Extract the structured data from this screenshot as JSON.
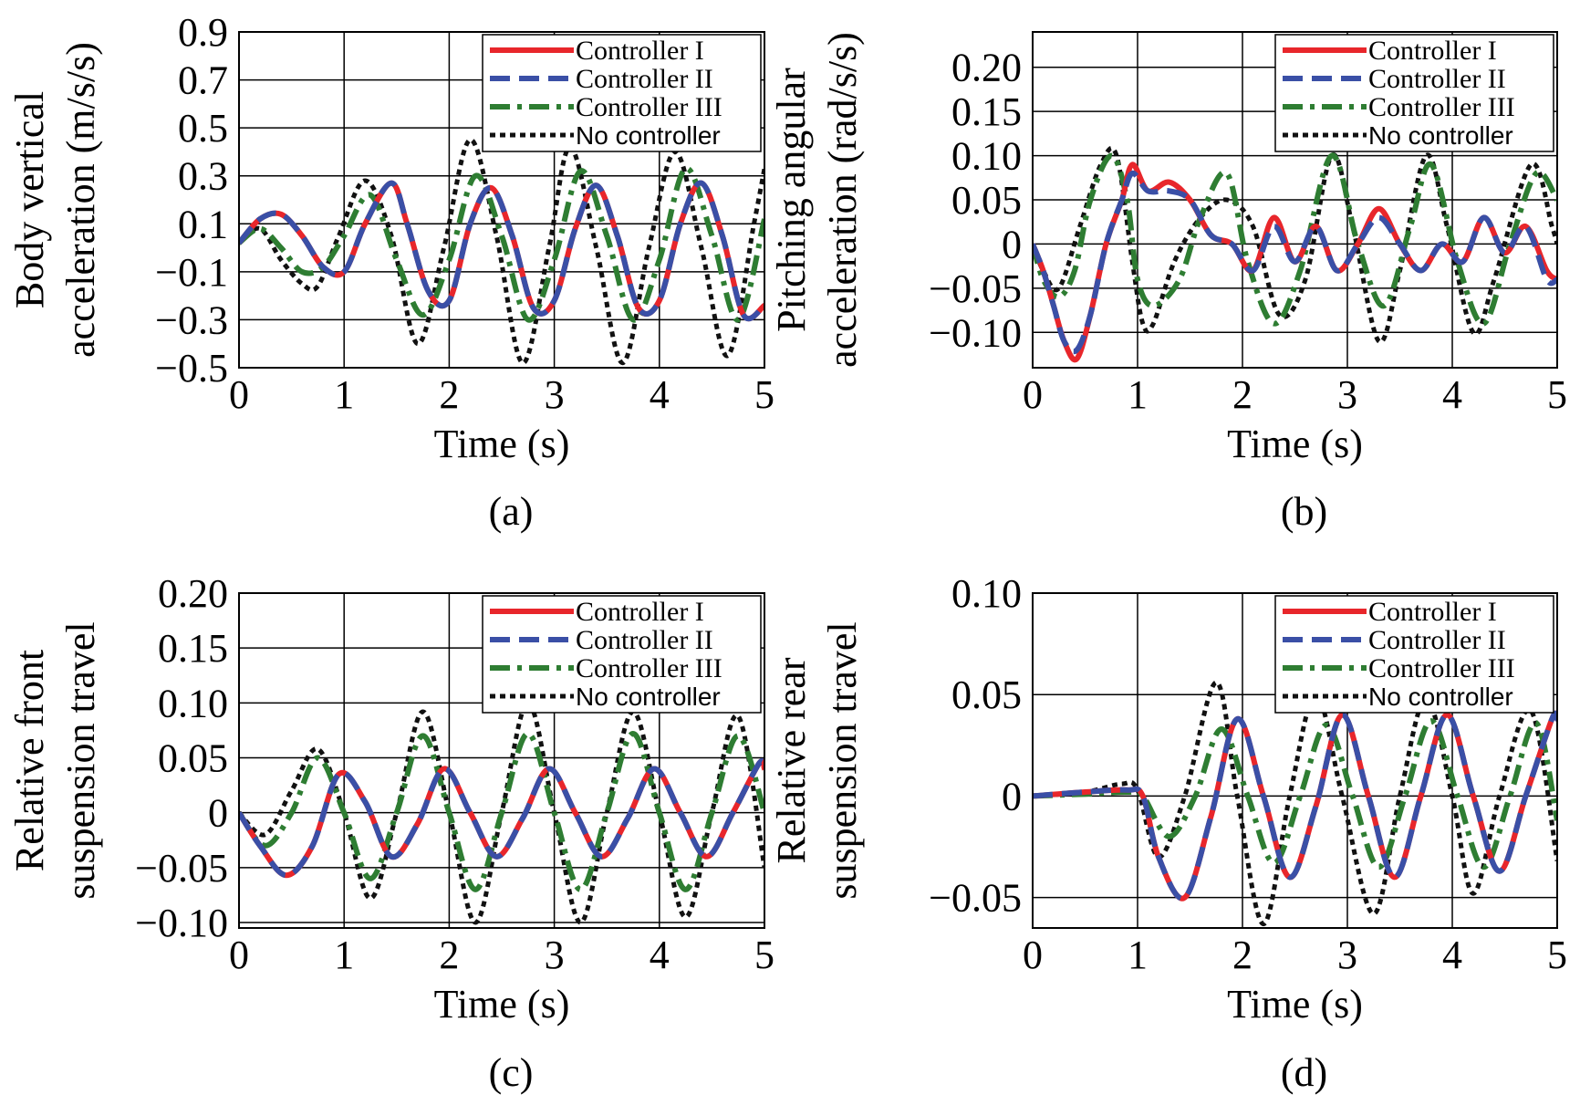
{
  "legend": [
    "Controller I",
    "Controller II",
    "Controller III",
    "No controller"
  ],
  "styles": {
    "Controller I": {
      "color": "#e8262b",
      "dash": "",
      "width": 6
    },
    "Controller II": {
      "color": "#3a4fa6",
      "dash": "22,10",
      "width": 6
    },
    "Controller III": {
      "color": "#2e7d32",
      "dash": "22,8,5,8",
      "width": 6
    },
    "No controller": {
      "color": "#111111",
      "dash": "6,5",
      "width": 5
    }
  },
  "chart_data": [
    {
      "type": "line",
      "caption": "(a)",
      "xlabel": "Time (s)",
      "ylabel": [
        "Body vertical",
        "acceleration (m/s/s)"
      ],
      "xlim": [
        0,
        5
      ],
      "ylim": [
        -0.5,
        0.9
      ],
      "xticks": [
        0,
        1,
        2,
        3,
        4,
        5
      ],
      "xtick_labels": [
        "0",
        "1",
        "2",
        "3",
        "4",
        "5"
      ],
      "yticks": [
        -0.5,
        -0.3,
        -0.1,
        0.1,
        0.3,
        0.5,
        0.7,
        0.9
      ],
      "ytick_labels": [
        "−0.5",
        "−0.3",
        "−0.1",
        "0.1",
        "0.3",
        "0.5",
        "0.7",
        "0.9"
      ],
      "grid": true,
      "legend_position": "top-right",
      "series": [
        {
          "name": "Controller I",
          "x": [
            0,
            0.2,
            0.4,
            0.6,
            0.8,
            1.0,
            1.2,
            1.45,
            1.6,
            1.8,
            2.0,
            2.2,
            2.4,
            2.6,
            2.8,
            3.0,
            3.2,
            3.4,
            3.6,
            3.8,
            4.0,
            4.2,
            4.4,
            4.6,
            4.8,
            5.0
          ],
          "y": [
            0.02,
            0.12,
            0.14,
            0.05,
            -0.08,
            -0.1,
            0.1,
            0.27,
            0.1,
            -0.18,
            -0.22,
            0.1,
            0.25,
            0.05,
            -0.25,
            -0.22,
            0.08,
            0.26,
            0.05,
            -0.25,
            -0.22,
            0.1,
            0.27,
            0.05,
            -0.28,
            -0.24
          ]
        },
        {
          "name": "Controller II",
          "x": [
            0,
            0.2,
            0.4,
            0.6,
            0.8,
            1.0,
            1.2,
            1.45,
            1.6,
            1.8,
            2.0,
            2.2,
            2.4,
            2.6,
            2.8,
            3.0,
            3.2,
            3.4,
            3.6,
            3.8,
            4.0,
            4.2,
            4.4,
            4.6,
            4.8,
            5.0
          ],
          "y": [
            0.02,
            0.12,
            0.14,
            0.05,
            -0.08,
            -0.1,
            0.1,
            0.27,
            0.1,
            -0.18,
            -0.22,
            0.1,
            0.25,
            0.05,
            -0.25,
            -0.22,
            0.08,
            0.26,
            0.05,
            -0.25,
            -0.22,
            0.1,
            0.27,
            0.05,
            -0.28,
            -0.24
          ]
        },
        {
          "name": "Controller III",
          "x": [
            0,
            0.2,
            0.4,
            0.6,
            0.8,
            1.0,
            1.25,
            1.5,
            1.75,
            2.0,
            2.25,
            2.5,
            2.75,
            3.0,
            3.25,
            3.5,
            3.75,
            4.0,
            4.25,
            4.5,
            4.75,
            5.0
          ],
          "y": [
            0.02,
            0.08,
            0.0,
            -0.1,
            -0.08,
            0.05,
            0.22,
            -0.05,
            -0.28,
            -0.05,
            0.3,
            0.05,
            -0.3,
            -0.05,
            0.32,
            0.05,
            -0.3,
            -0.05,
            0.33,
            0.05,
            -0.3,
            0.12
          ]
        },
        {
          "name": "No controller",
          "x": [
            0,
            0.2,
            0.4,
            0.6,
            0.75,
            0.95,
            1.2,
            1.45,
            1.7,
            1.95,
            2.2,
            2.45,
            2.7,
            2.95,
            3.15,
            3.4,
            3.65,
            3.9,
            4.15,
            4.4,
            4.65,
            4.9,
            5.0
          ],
          "y": [
            0.02,
            0.08,
            -0.05,
            -0.15,
            -0.16,
            0.05,
            0.28,
            0.05,
            -0.4,
            0.0,
            0.45,
            0.05,
            -0.48,
            0.0,
            0.42,
            0.0,
            -0.48,
            0.0,
            0.4,
            0.0,
            -0.45,
            0.1,
            0.33
          ]
        }
      ]
    },
    {
      "type": "line",
      "caption": "(b)",
      "xlabel": "Time (s)",
      "ylabel": [
        "Pitching angular",
        "acceleration (rad/s/s)"
      ],
      "xlim": [
        0,
        5
      ],
      "ylim": [
        -0.14,
        0.24
      ],
      "xticks": [
        0,
        1,
        2,
        3,
        4,
        5
      ],
      "xtick_labels": [
        "0",
        "1",
        "2",
        "3",
        "4",
        "5"
      ],
      "yticks": [
        -0.1,
        -0.05,
        0,
        0.05,
        0.1,
        0.15,
        0.2
      ],
      "ytick_labels": [
        "−0.10",
        "−0.05",
        "0",
        "0.05",
        "0.10",
        "0.15",
        "0.20"
      ],
      "grid": true,
      "legend_position": "top-right",
      "series": [
        {
          "name": "Controller I",
          "x": [
            0,
            0.1,
            0.2,
            0.3,
            0.42,
            0.55,
            0.7,
            0.85,
            0.95,
            1.1,
            1.3,
            1.5,
            1.7,
            1.9,
            2.1,
            2.3,
            2.5,
            2.7,
            2.9,
            3.1,
            3.3,
            3.5,
            3.7,
            3.9,
            4.1,
            4.3,
            4.5,
            4.7,
            4.9,
            5.0
          ],
          "y": [
            0,
            -0.03,
            -0.07,
            -0.11,
            -0.13,
            -0.08,
            0.0,
            0.05,
            0.09,
            0.06,
            0.07,
            0.05,
            0.01,
            0.0,
            -0.03,
            0.03,
            -0.02,
            0.02,
            -0.03,
            0.0,
            0.04,
            0.0,
            -0.03,
            0.0,
            -0.02,
            0.03,
            -0.01,
            0.02,
            -0.03,
            -0.04
          ]
        },
        {
          "name": "Controller II",
          "x": [
            0,
            0.1,
            0.2,
            0.3,
            0.42,
            0.55,
            0.7,
            0.85,
            0.95,
            1.1,
            1.3,
            1.5,
            1.7,
            1.9,
            2.1,
            2.3,
            2.5,
            2.7,
            2.9,
            3.1,
            3.3,
            3.5,
            3.7,
            3.9,
            4.1,
            4.3,
            4.5,
            4.7,
            4.9,
            5.0
          ],
          "y": [
            0,
            -0.03,
            -0.07,
            -0.11,
            -0.12,
            -0.08,
            0.0,
            0.05,
            0.08,
            0.06,
            0.06,
            0.05,
            0.01,
            0.0,
            -0.03,
            0.02,
            -0.02,
            0.02,
            -0.03,
            0.0,
            0.03,
            0.0,
            -0.03,
            0.0,
            -0.02,
            0.03,
            -0.01,
            0.02,
            -0.04,
            -0.04
          ]
        },
        {
          "name": "Controller III",
          "x": [
            0,
            0.1,
            0.25,
            0.4,
            0.55,
            0.75,
            0.9,
            1.0,
            1.15,
            1.4,
            1.6,
            1.85,
            2.05,
            2.3,
            2.55,
            2.85,
            3.1,
            3.35,
            3.6,
            3.8,
            4.05,
            4.3,
            4.55,
            4.8,
            5.0
          ],
          "y": [
            0,
            -0.04,
            -0.06,
            -0.03,
            0.05,
            0.1,
            0.05,
            -0.04,
            -0.07,
            -0.04,
            0.03,
            0.08,
            -0.02,
            -0.09,
            -0.03,
            0.1,
            0.0,
            -0.07,
            0.02,
            0.09,
            -0.02,
            -0.09,
            0.0,
            0.08,
            0.05
          ]
        },
        {
          "name": "No controller",
          "x": [
            0,
            0.1,
            0.25,
            0.45,
            0.65,
            0.8,
            0.95,
            1.05,
            1.15,
            1.35,
            1.6,
            1.85,
            2.1,
            2.35,
            2.6,
            2.85,
            3.05,
            3.3,
            3.5,
            3.75,
            3.95,
            4.2,
            4.4,
            4.75,
            4.95,
            5.0
          ],
          "y": [
            0,
            -0.03,
            -0.05,
            0.02,
            0.09,
            0.1,
            -0.02,
            -0.09,
            -0.09,
            -0.02,
            0.03,
            0.05,
            0.02,
            -0.08,
            -0.04,
            0.1,
            0.02,
            -0.11,
            -0.03,
            0.1,
            0.02,
            -0.1,
            -0.04,
            0.09,
            0.02,
            0.0
          ]
        }
      ]
    },
    {
      "type": "line",
      "caption": "(c)",
      "xlabel": "Time (s)",
      "ylabel": [
        "Relative front",
        "suspension travel"
      ],
      "xlim": [
        0,
        5
      ],
      "ylim": [
        -0.105,
        0.2
      ],
      "xticks": [
        0,
        1,
        2,
        3,
        4,
        5
      ],
      "xtick_labels": [
        "0",
        "1",
        "2",
        "3",
        "4",
        "5"
      ],
      "yticks": [
        -0.1,
        -0.05,
        0,
        0.05,
        0.1,
        0.15,
        0.2
      ],
      "ytick_labels": [
        "−0.10",
        "−0.05",
        "0",
        "0.05",
        "0.10",
        "0.15",
        "0.20"
      ],
      "grid": true,
      "legend_position": "top-right",
      "series": [
        {
          "name": "Controller I",
          "x": [
            0,
            0.2,
            0.45,
            0.7,
            0.95,
            1.2,
            1.45,
            1.7,
            1.95,
            2.2,
            2.45,
            2.7,
            2.95,
            3.2,
            3.45,
            3.7,
            3.95,
            4.2,
            4.45,
            4.7,
            4.95,
            5.0
          ],
          "y": [
            0,
            -0.03,
            -0.057,
            -0.03,
            0.035,
            0.01,
            -0.04,
            -0.01,
            0.04,
            0.0,
            -0.04,
            -0.005,
            0.04,
            0.0,
            -0.04,
            -0.005,
            0.04,
            0.0,
            -0.04,
            0.0,
            0.045,
            0.04
          ]
        },
        {
          "name": "Controller II",
          "x": [
            0,
            0.2,
            0.45,
            0.7,
            0.95,
            1.2,
            1.45,
            1.7,
            1.95,
            2.2,
            2.45,
            2.7,
            2.95,
            3.2,
            3.45,
            3.7,
            3.95,
            4.2,
            4.45,
            4.7,
            4.95,
            5.0
          ],
          "y": [
            0,
            -0.03,
            -0.057,
            -0.03,
            0.035,
            0.01,
            -0.04,
            -0.01,
            0.04,
            0.0,
            -0.04,
            -0.005,
            0.04,
            0.0,
            -0.04,
            -0.005,
            0.04,
            0.0,
            -0.04,
            0.0,
            0.045,
            0.04
          ]
        },
        {
          "name": "Controller III",
          "x": [
            0,
            0.25,
            0.5,
            0.75,
            1.0,
            1.25,
            1.5,
            1.75,
            2.0,
            2.25,
            2.5,
            2.75,
            3.0,
            3.25,
            3.5,
            3.75,
            4.0,
            4.25,
            4.5,
            4.75,
            5.0
          ],
          "y": [
            0,
            -0.03,
            0.0,
            0.05,
            0.0,
            -0.06,
            0.0,
            0.07,
            0.0,
            -0.07,
            0.0,
            0.072,
            0.0,
            -0.07,
            0.0,
            0.072,
            0.0,
            -0.07,
            0.0,
            0.07,
            0.0
          ]
        },
        {
          "name": "No controller",
          "x": [
            0,
            0.25,
            0.5,
            0.75,
            1.0,
            1.25,
            1.5,
            1.75,
            2.0,
            2.25,
            2.5,
            2.75,
            3.0,
            3.25,
            3.5,
            3.75,
            4.0,
            4.25,
            4.5,
            4.75,
            5.0
          ],
          "y": [
            0,
            -0.02,
            0.02,
            0.058,
            0.0,
            -0.078,
            0.0,
            0.092,
            0.0,
            -0.1,
            0.0,
            0.1,
            0.0,
            -0.1,
            0.0,
            0.092,
            0.0,
            -0.095,
            0.0,
            0.088,
            -0.05
          ]
        }
      ]
    },
    {
      "type": "line",
      "caption": "(d)",
      "xlabel": "Time (s)",
      "ylabel": [
        "Relative rear",
        "suspension travel"
      ],
      "xlim": [
        0,
        5
      ],
      "ylim": [
        -0.065,
        0.1
      ],
      "xticks": [
        0,
        1,
        2,
        3,
        4,
        5
      ],
      "xtick_labels": [
        "0",
        "1",
        "2",
        "3",
        "4",
        "5"
      ],
      "yticks": [
        -0.05,
        0,
        0.05,
        0.1
      ],
      "ytick_labels": [
        "−0.05",
        "0",
        "0.05",
        "0.10"
      ],
      "grid": true,
      "legend_position": "top-right",
      "series": [
        {
          "name": "Controller I",
          "x": [
            0,
            0.5,
            0.9,
            1.05,
            1.2,
            1.45,
            1.7,
            1.95,
            2.2,
            2.45,
            2.7,
            2.95,
            3.2,
            3.45,
            3.7,
            3.95,
            4.2,
            4.45,
            4.7,
            4.95,
            5.0
          ],
          "y": [
            0,
            0.002,
            0.003,
            0.0,
            -0.03,
            -0.05,
            -0.01,
            0.038,
            0.0,
            -0.04,
            -0.005,
            0.04,
            0.0,
            -0.04,
            0.0,
            0.04,
            0.0,
            -0.037,
            0.0,
            0.038,
            0.038
          ]
        },
        {
          "name": "Controller II",
          "x": [
            0,
            0.5,
            0.9,
            1.05,
            1.2,
            1.45,
            1.7,
            1.95,
            2.2,
            2.45,
            2.7,
            2.95,
            3.2,
            3.45,
            3.7,
            3.95,
            4.2,
            4.45,
            4.7,
            4.95,
            5.0
          ],
          "y": [
            0,
            0.002,
            0.003,
            0.0,
            -0.03,
            -0.05,
            -0.01,
            0.038,
            0.0,
            -0.04,
            -0.005,
            0.04,
            0.0,
            -0.04,
            0.0,
            0.04,
            0.0,
            -0.037,
            0.0,
            0.038,
            0.038
          ]
        },
        {
          "name": "Controller III",
          "x": [
            0,
            0.5,
            0.9,
            1.05,
            1.3,
            1.55,
            1.8,
            2.05,
            2.3,
            2.55,
            2.8,
            3.05,
            3.3,
            3.55,
            3.8,
            4.05,
            4.3,
            4.55,
            4.8,
            5.0
          ],
          "y": [
            0,
            0.001,
            0.002,
            0.0,
            -0.02,
            0.0,
            0.033,
            0.0,
            -0.033,
            0.0,
            0.035,
            0.0,
            -0.035,
            0.0,
            0.037,
            0.0,
            -0.035,
            0.0,
            0.036,
            -0.012
          ]
        },
        {
          "name": "No controller",
          "x": [
            0,
            0.5,
            0.85,
            1.0,
            1.2,
            1.45,
            1.75,
            1.95,
            2.2,
            2.45,
            2.7,
            2.95,
            3.25,
            3.5,
            3.75,
            4.0,
            4.2,
            4.45,
            4.75,
            5.0
          ],
          "y": [
            0,
            0.002,
            0.006,
            0.003,
            -0.03,
            0.0,
            0.056,
            0.0,
            -0.063,
            0.0,
            0.05,
            0.0,
            -0.058,
            0.0,
            0.048,
            0.0,
            -0.048,
            0.0,
            0.042,
            -0.032
          ]
        }
      ]
    }
  ]
}
